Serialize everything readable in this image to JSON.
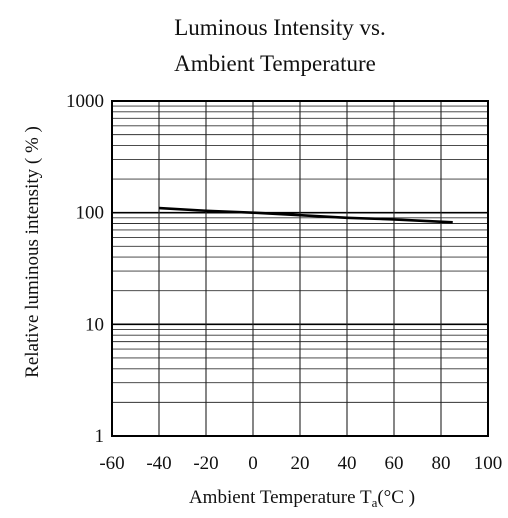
{
  "chart_data": {
    "type": "line",
    "title_line1": "Luminous Intensity vs.",
    "title_line2": "Ambient Temperature",
    "xlabel_main": "Ambient Temperature T",
    "xlabel_sub": "a",
    "xlabel_unit": "(°C )",
    "ylabel": "Relative luminous intensity ( % )",
    "xlim": [
      -60,
      100
    ],
    "ylim": [
      1,
      1000
    ],
    "yscale": "log",
    "grid": true,
    "x_ticks": [
      "-60",
      "-40",
      "-20",
      "0",
      "20",
      "40",
      "60",
      "80",
      "100"
    ],
    "y_ticks": [
      "1",
      "10",
      "100",
      "1000"
    ],
    "series": [
      {
        "x": [
          -40,
          -20,
          0,
          20,
          40,
          60,
          85
        ],
        "y": [
          110,
          104,
          100,
          95,
          90,
          87,
          82
        ]
      }
    ]
  }
}
